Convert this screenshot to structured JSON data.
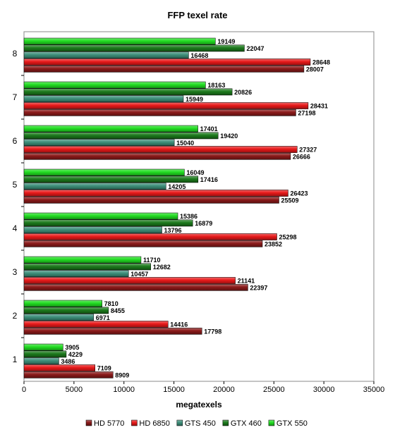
{
  "chart_data": {
    "type": "bar",
    "orientation": "horizontal",
    "title": "FFP texel rate",
    "xlabel": "megatexels",
    "ylabel": "",
    "xlim": [
      0,
      35000
    ],
    "x_ticks": [
      0,
      5000,
      10000,
      15000,
      20000,
      25000,
      30000,
      35000
    ],
    "grid": false,
    "legend_position": "bottom",
    "categories": [
      "1",
      "2",
      "3",
      "4",
      "5",
      "6",
      "7",
      "8"
    ],
    "series": [
      {
        "name": "HD 5770",
        "color": "#8b1a1a",
        "values": [
          8909,
          17798,
          22397,
          23852,
          25509,
          26666,
          27198,
          28007
        ]
      },
      {
        "name": "HD 6850",
        "color": "#e8191a",
        "values": [
          7109,
          14416,
          21141,
          25298,
          26423,
          27327,
          28431,
          28648
        ]
      },
      {
        "name": "GTS 450",
        "color": "#3d8f7a",
        "values": [
          3486,
          6971,
          10457,
          13796,
          14205,
          15040,
          15949,
          16468
        ]
      },
      {
        "name": "GTX 460",
        "color": "#1c7a1c",
        "values": [
          4229,
          8455,
          12682,
          16879,
          17416,
          19420,
          20826,
          22047
        ]
      },
      {
        "name": "GTX 550",
        "color": "#22dd22",
        "values": [
          3905,
          7810,
          11710,
          15386,
          16049,
          17401,
          18163,
          19149
        ]
      }
    ]
  }
}
